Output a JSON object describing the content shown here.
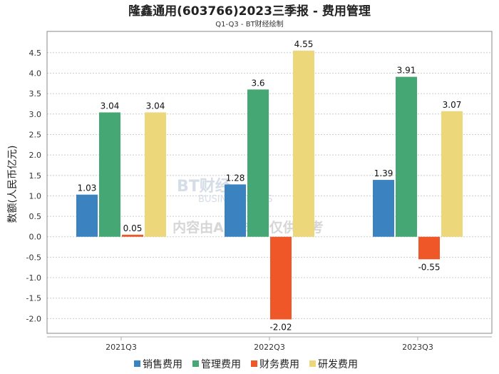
{
  "chart_data": {
    "type": "bar",
    "title": "隆鑫通用(603766)2023三季报 - 费用管理",
    "subtitle": "Q1-Q3 - BT财经绘制",
    "xlabel": "",
    "ylabel": "数额(人民币亿元)",
    "categories": [
      "2021Q3",
      "2022Q3",
      "2023Q3"
    ],
    "series": [
      {
        "name": "销售费用",
        "color": "#3a83c0",
        "values": [
          1.03,
          1.28,
          1.39
        ],
        "labels": [
          "1.03",
          "1.28",
          "1.39"
        ]
      },
      {
        "name": "管理费用",
        "color": "#45a874",
        "values": [
          3.04,
          3.6,
          3.91
        ],
        "labels": [
          "3.04",
          "3.6",
          "3.91"
        ]
      },
      {
        "name": "财务费用",
        "color": "#ef5628",
        "values": [
          0.05,
          -2.02,
          -0.55
        ],
        "labels": [
          "0.05",
          "-2.02",
          "-0.55"
        ]
      },
      {
        "name": "研发费用",
        "color": "#ecd77b",
        "values": [
          3.04,
          4.55,
          3.07
        ],
        "labels": [
          "3.04",
          "4.55",
          "3.07"
        ]
      }
    ],
    "yticks": [
      -2.0,
      -1.5,
      -1.0,
      -0.5,
      0.0,
      0.5,
      1.0,
      1.5,
      2.0,
      2.5,
      3.0,
      3.5,
      4.0,
      4.5
    ],
    "ylim": [
      -2.36,
      5.02
    ],
    "grid": true,
    "legend": "bottom-center"
  },
  "watermark": {
    "logo": "BT财经",
    "logo_sub": "BUSINESSTIMES",
    "text": "内容由AI生成，仅供参考"
  }
}
